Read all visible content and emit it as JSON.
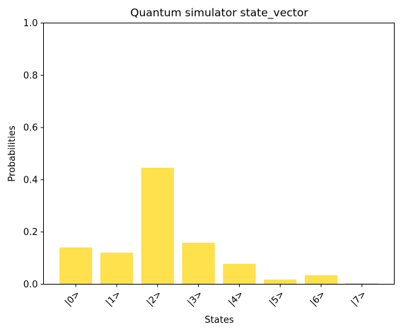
{
  "chart_data": {
    "type": "bar",
    "title": "Quantum simulator state_vector",
    "xlabel": "States",
    "ylabel": "Probabilities",
    "categories": [
      "|0>",
      "|1>",
      "|2>",
      "|3>",
      "|4>",
      "|5>",
      "|6>",
      "|7>"
    ],
    "values": [
      0.141,
      0.121,
      0.446,
      0.159,
      0.078,
      0.018,
      0.035,
      0.004
    ],
    "ylim": [
      0,
      1
    ],
    "yticks": [
      "0.0",
      "0.2",
      "0.4",
      "0.6",
      "0.8",
      "1.0"
    ],
    "grid": false,
    "bar_color": "#ffe04d",
    "xtick_rotation": "45"
  }
}
